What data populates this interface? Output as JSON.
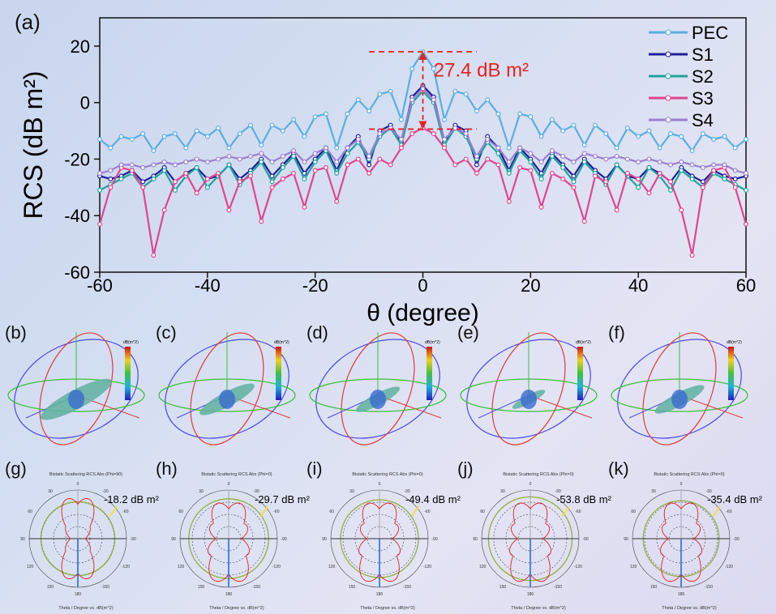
{
  "panel_labels": [
    "(a)",
    "(b)",
    "(c)",
    "(d)",
    "(e)",
    "(f)",
    "(g)",
    "(h)",
    "(i)",
    "(j)",
    "(k)"
  ],
  "chart_data": {
    "type": "line",
    "xlabel": "θ (degree)",
    "ylabel": "RCS (dB m²)",
    "xlim": [
      -60,
      60
    ],
    "ylim": [
      -60,
      30
    ],
    "xticks": [
      -60,
      -40,
      -20,
      0,
      20,
      40,
      60
    ],
    "yticks": [
      -60,
      -40,
      -20,
      0,
      20
    ],
    "grid": false,
    "legend_position": "top-right",
    "annotation": {
      "text": "27.4 dB m²",
      "from": -9.4,
      "to": 18,
      "color": "#e8201e"
    },
    "x": [
      -60,
      -58,
      -56,
      -54,
      -52,
      -50,
      -48,
      -46,
      -44,
      -42,
      -40,
      -38,
      -36,
      -34,
      -32,
      -30,
      -28,
      -26,
      -24,
      -22,
      -20,
      -18,
      -16,
      -14,
      -12,
      -10,
      -8,
      -6,
      -4,
      -2,
      0,
      2,
      4,
      6,
      8,
      10,
      12,
      14,
      16,
      18,
      20,
      22,
      24,
      26,
      28,
      30,
      32,
      34,
      36,
      38,
      40,
      42,
      44,
      46,
      48,
      50,
      52,
      54,
      56,
      58,
      60
    ],
    "series": [
      {
        "name": "PEC",
        "color": "#5aaee0",
        "values": [
          -13,
          -16,
          -12,
          -13,
          -11,
          -17,
          -12,
          -11,
          -16,
          -10,
          -12,
          -9,
          -16,
          -11,
          -8,
          -15,
          -8,
          -10,
          -6,
          -12,
          -5,
          -4,
          -16,
          -4,
          1,
          -3,
          3,
          4,
          -6,
          12,
          18,
          12,
          -6,
          4,
          3,
          -3,
          1,
          -4,
          -16,
          -4,
          -5,
          -12,
          -6,
          -10,
          -8,
          -15,
          -8,
          -11,
          -16,
          -9,
          -12,
          -10,
          -16,
          -11,
          -12,
          -17,
          -11,
          -13,
          -12,
          -16,
          -13
        ]
      },
      {
        "name": "S1",
        "color": "#1f1f9a",
        "values": [
          -26,
          -27,
          -26,
          -24,
          -28,
          -26,
          -23,
          -28,
          -25,
          -23,
          -27,
          -26,
          -22,
          -27,
          -24,
          -20,
          -26,
          -22,
          -18,
          -25,
          -20,
          -16,
          -24,
          -16,
          -12,
          -22,
          -10,
          -8,
          -14,
          2,
          6,
          2,
          -14,
          -8,
          -10,
          -22,
          -12,
          -16,
          -24,
          -16,
          -20,
          -25,
          -18,
          -22,
          -26,
          -20,
          -24,
          -27,
          -22,
          -26,
          -27,
          -23,
          -25,
          -28,
          -23,
          -26,
          -28,
          -24,
          -26,
          -27,
          -26
        ]
      },
      {
        "name": "S2",
        "color": "#1fa39a",
        "values": [
          -31,
          -29,
          -27,
          -25,
          -30,
          -27,
          -24,
          -31,
          -26,
          -23,
          -30,
          -26,
          -22,
          -29,
          -25,
          -21,
          -28,
          -23,
          -19,
          -27,
          -21,
          -17,
          -25,
          -18,
          -14,
          -20,
          -12,
          -9,
          -15,
          0,
          4,
          0,
          -15,
          -9,
          -12,
          -20,
          -14,
          -18,
          -25,
          -17,
          -21,
          -27,
          -19,
          -23,
          -28,
          -21,
          -25,
          -29,
          -22,
          -26,
          -30,
          -23,
          -26,
          -31,
          -24,
          -27,
          -30,
          -25,
          -27,
          -29,
          -31
        ]
      },
      {
        "name": "S3",
        "color": "#e0458f",
        "values": [
          -43,
          -30,
          -23,
          -24,
          -30,
          -54,
          -38,
          -28,
          -25,
          -32,
          -27,
          -25,
          -38,
          -28,
          -26,
          -42,
          -30,
          -27,
          -25,
          -37,
          -24,
          -23,
          -35,
          -22,
          -20,
          -25,
          -20,
          -22,
          -16,
          -11,
          -9,
          -11,
          -16,
          -22,
          -20,
          -25,
          -20,
          -22,
          -35,
          -23,
          -24,
          -37,
          -25,
          -27,
          -30,
          -42,
          -26,
          -28,
          -38,
          -25,
          -27,
          -32,
          -25,
          -28,
          -38,
          -54,
          -30,
          -24,
          -23,
          -30,
          -43
        ]
      },
      {
        "name": "S4",
        "color": "#9b7fd0",
        "values": [
          -25,
          -24,
          -22,
          -22,
          -23,
          -22,
          -21,
          -22,
          -21,
          -20,
          -21,
          -20,
          -19,
          -20,
          -19,
          -18,
          -21,
          -19,
          -17,
          -21,
          -18,
          -16,
          -21,
          -16,
          -13,
          -19,
          -11,
          -9,
          -13,
          1,
          5,
          1,
          -13,
          -9,
          -11,
          -19,
          -13,
          -16,
          -21,
          -16,
          -18,
          -21,
          -17,
          -19,
          -21,
          -18,
          -19,
          -20,
          -19,
          -20,
          -21,
          -20,
          -21,
          -22,
          -21,
          -22,
          -23,
          -22,
          -22,
          -24,
          -25
        ]
      }
    ]
  },
  "panels_3d": [
    {
      "id": "b",
      "colorbar_label": "dB(m^2)"
    },
    {
      "id": "c",
      "colorbar_label": "dB(m^2)"
    },
    {
      "id": "d",
      "colorbar_label": "dB(m^2)"
    },
    {
      "id": "e",
      "colorbar_label": "dB(m^2)"
    },
    {
      "id": "f",
      "colorbar_label": "dB(m^2)"
    }
  ],
  "polar_panels": [
    {
      "id": "g",
      "title": "Bistatic Scattering RCS Abs (Phi=90)",
      "footer": "Theta / Degree vs. dB(m^2)",
      "annotation": "-18.2 dB m²"
    },
    {
      "id": "h",
      "title": "Bistatic Scattering RCS Abs (Phi=0)",
      "footer": "Theta / Degree vs. dB(m^2)",
      "annotation": "-29.7 dB m²"
    },
    {
      "id": "i",
      "title": "Bistatic Scattering RCS Abs (Phi=0)",
      "footer": "Theta / Degree vs. dB(m^2)",
      "annotation": "-49.4 dB m²"
    },
    {
      "id": "j",
      "title": "Bistatic Scattering RCS Abs (Phi=0)",
      "footer": "Theta / Degree vs. dB(m^2)",
      "annotation": "-53.8 dB m²"
    },
    {
      "id": "k",
      "title": "Bistatic Scattering RCS Abs (Phi=0)",
      "footer": "Theta / Degree vs. dB(m^2)",
      "annotation": "-35.4 dB m²"
    }
  ],
  "polar_angle_labels": [
    "0",
    "30",
    "-30",
    "60",
    "-60",
    "90",
    "-90",
    "120",
    "-120",
    "150",
    "-150",
    "180"
  ]
}
